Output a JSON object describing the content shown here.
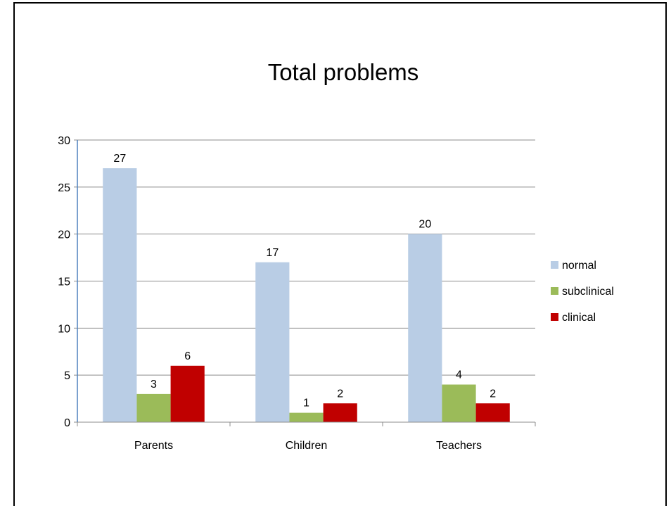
{
  "chart_data": {
    "type": "bar",
    "title": "Total problems",
    "xlabel": "",
    "ylabel": "",
    "categories": [
      "Parents",
      "Children",
      "Teachers"
    ],
    "ylim": [
      0,
      30
    ],
    "yticks": [
      0,
      5,
      10,
      15,
      20,
      25,
      30
    ],
    "grid": true,
    "legend_position": "right",
    "series": [
      {
        "name": "normal",
        "color": "#B9CDE5",
        "values": [
          27,
          17,
          20
        ]
      },
      {
        "name": "subclinical",
        "color": "#9BBB59",
        "values": [
          3,
          1,
          4
        ]
      },
      {
        "name": "clinical",
        "color": "#C00000",
        "values": [
          6,
          2,
          2
        ]
      }
    ]
  }
}
